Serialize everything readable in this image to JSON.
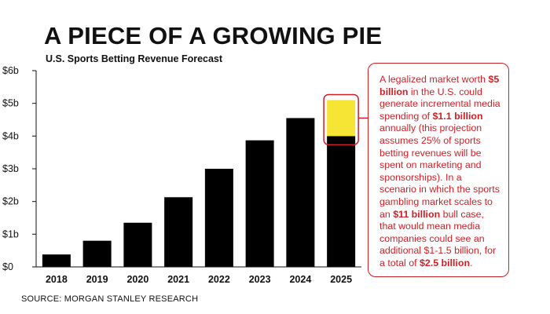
{
  "header": {
    "title": "A PIECE OF A GROWING PIE",
    "subtitle": "U.S. Sports Betting Revenue Forecast"
  },
  "footer": {
    "source": "SOURCE: MORGAN STANLEY RESEARCH"
  },
  "colors": {
    "bar": "#000000",
    "highlight": "#f6e534",
    "accent": "#d11f26",
    "axis": "#111111"
  },
  "callout": {
    "parts": [
      {
        "t": "A legalized market worth ",
        "b": false
      },
      {
        "t": "$5 billion",
        "b": true
      },
      {
        "t": " in the U.S. could generate incremental media spending of ",
        "b": false
      },
      {
        "t": "$1.1 billion",
        "b": true
      },
      {
        "t": " annually (this projection assumes 25% of sports betting revenues will be spent on marketing and sponsorships). In a scenario in which the sports gambling market scales to an ",
        "b": false
      },
      {
        "t": "$11 billion",
        "b": true
      },
      {
        "t": " bull case, that would mean media companies could see an additional $1-1.5 billion, for a total of ",
        "b": false
      },
      {
        "t": "$2.5 billion",
        "b": true
      },
      {
        "t": ".",
        "b": false
      }
    ]
  },
  "chart_data": {
    "type": "bar",
    "categories": [
      "2018",
      "2019",
      "2020",
      "2021",
      "2022",
      "2023",
      "2024",
      "2025"
    ],
    "values": [
      0.38,
      0.8,
      1.35,
      2.13,
      3.0,
      3.87,
      4.55,
      4.0
    ],
    "highlight": {
      "category": "2025",
      "from": 4.0,
      "to": 5.1
    },
    "ylim": [
      0,
      6
    ],
    "yticks": [
      0,
      1,
      2,
      3,
      4,
      5,
      6
    ],
    "ytick_labels": [
      "$0",
      "$1b",
      "$2b",
      "$3b",
      "$4b",
      "$5b",
      "$6b"
    ],
    "title": "",
    "xlabel": "",
    "ylabel": "",
    "grid": false
  }
}
